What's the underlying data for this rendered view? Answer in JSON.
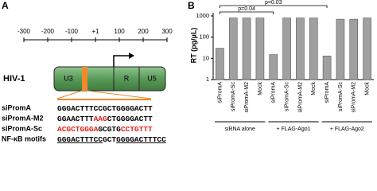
{
  "panel_a": {
    "letter": "A",
    "scale": [
      "-300",
      "-200",
      "-100",
      "+1",
      "100",
      "200",
      "300"
    ],
    "virus": "HIV-1",
    "regions": [
      "U3",
      "R",
      "U5"
    ],
    "sequences": [
      {
        "name": "siPromA",
        "segments": [
          {
            "text": "GGGACTTTCCGCTGGGGACTT",
            "color": "#000000"
          }
        ]
      },
      {
        "name": "siPromA-M2",
        "segments": [
          {
            "text": "GGAACTTT",
            "color": "#000000"
          },
          {
            "text": "AAG",
            "color": "#e0201a"
          },
          {
            "text": "CTGGGGACTT",
            "color": "#000000"
          }
        ]
      },
      {
        "name": "siPromA-Sc",
        "segments": [
          {
            "text": "ACGCTGGGA",
            "color": "#e0201a"
          },
          {
            "text": "GCGTG",
            "color": "#000000"
          },
          {
            "text": "CCTGTTT",
            "color": "#e0201a"
          }
        ]
      },
      {
        "name": "NF-κB motifs",
        "segments": [
          {
            "text": "GGGACTTTCC",
            "color": "#000000",
            "underline": true
          },
          {
            "text": "GCT",
            "color": "#000000",
            "underline": false
          },
          {
            "text": "GGGGACTTTCC",
            "color": "#000000",
            "underline": true
          }
        ]
      }
    ]
  },
  "chart_data": {
    "type": "bar",
    "letter": "B",
    "y_label": "RT (pg/µL)",
    "log_scale": true,
    "categories": [
      "siPromA",
      "siPromA-Sc",
      "siPromA-M2",
      "Mock",
      "siPromA",
      "siPromA-Sc",
      "siPromA-M2",
      "Mock",
      "siPromA",
      "siPromA-Sc",
      "siPromA-M2",
      "Mock"
    ],
    "values": [
      30,
      800,
      800,
      800,
      15,
      800,
      800,
      800,
      13,
      700,
      700,
      800
    ],
    "color": "#a0a0a0",
    "ylim": [
      1,
      1000
    ],
    "yticks": [
      1,
      10,
      100,
      1000
    ],
    "groups": [
      "siRNA alone",
      "+ FLAG-Ago1",
      "+ FLAG-Ago2"
    ],
    "annotations": [
      "p=0.04",
      "p=0.03"
    ]
  }
}
